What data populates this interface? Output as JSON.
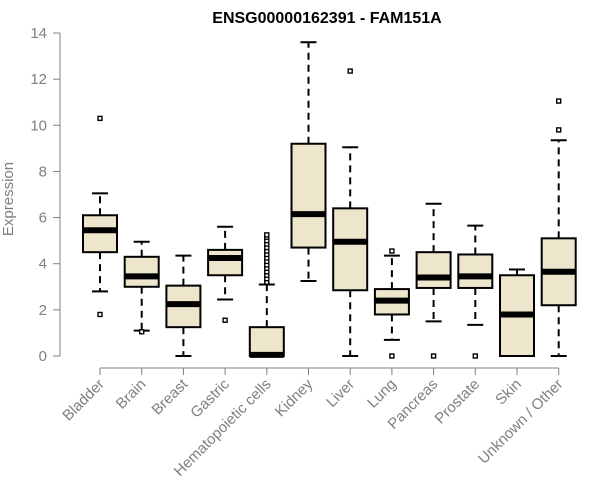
{
  "chart_data": {
    "type": "boxplot",
    "title": "ENSG00000162391 - FAM151A",
    "xlabel": "",
    "ylabel": "Expression",
    "ylim": [
      0,
      14
    ],
    "yticks": [
      0,
      2,
      4,
      6,
      8,
      10,
      12,
      14
    ],
    "colors": {
      "box_fill": "#ede6cc",
      "axis": "#808080",
      "line": "#000000"
    },
    "categories": [
      "Bladder",
      "Brain",
      "Breast",
      "Gastric",
      "Hematopoietic cells",
      "Kidney",
      "Liver",
      "Lung",
      "Pancreas",
      "Prostate",
      "Skin",
      "Unknown / Other"
    ],
    "boxes": [
      {
        "category": "Bladder",
        "whisker_low": 2.8,
        "q1": 4.5,
        "median": 5.45,
        "q3": 6.1,
        "whisker_high": 7.05,
        "outliers": [
          1.8,
          10.3
        ]
      },
      {
        "category": "Brain",
        "whisker_low": 1.1,
        "q1": 3.0,
        "median": 3.45,
        "q3": 4.3,
        "whisker_high": 4.95,
        "outliers": [
          1.05
        ]
      },
      {
        "category": "Breast",
        "whisker_low": 0.0,
        "q1": 1.25,
        "median": 2.25,
        "q3": 3.05,
        "whisker_high": 4.35,
        "outliers": []
      },
      {
        "category": "Gastric",
        "whisker_low": 2.45,
        "q1": 3.5,
        "median": 4.25,
        "q3": 4.6,
        "whisker_high": 5.6,
        "outliers": [
          1.55
        ]
      },
      {
        "category": "Hematopoietic cells",
        "whisker_low": 0.0,
        "q1": 0.0,
        "median": 0.05,
        "q3": 1.25,
        "whisker_high": 3.1,
        "outliers": [
          3.2,
          3.35,
          3.5,
          3.65,
          3.8,
          3.95,
          4.1,
          4.25,
          4.4,
          4.55,
          4.7,
          4.85,
          5.0,
          5.15,
          5.25
        ]
      },
      {
        "category": "Kidney",
        "whisker_low": 3.25,
        "q1": 4.7,
        "median": 6.15,
        "q3": 9.2,
        "whisker_high": 13.6,
        "outliers": []
      },
      {
        "category": "Liver",
        "whisker_low": 0.0,
        "q1": 2.85,
        "median": 4.95,
        "q3": 6.4,
        "whisker_high": 9.05,
        "outliers": [
          12.35
        ]
      },
      {
        "category": "Lung",
        "whisker_low": 0.7,
        "q1": 1.8,
        "median": 2.4,
        "q3": 2.9,
        "whisker_high": 4.35,
        "outliers": [
          0.0,
          4.55
        ]
      },
      {
        "category": "Pancreas",
        "whisker_low": 1.5,
        "q1": 2.95,
        "median": 3.4,
        "q3": 4.5,
        "whisker_high": 6.6,
        "outliers": [
          0.0
        ]
      },
      {
        "category": "Prostate",
        "whisker_low": 1.35,
        "q1": 2.95,
        "median": 3.45,
        "q3": 4.4,
        "whisker_high": 5.65,
        "outliers": [
          0.0
        ]
      },
      {
        "category": "Skin",
        "whisker_low": 0.0,
        "q1": 0.0,
        "median": 1.8,
        "q3": 3.5,
        "whisker_high": 3.75,
        "outliers": []
      },
      {
        "category": "Unknown / Other",
        "whisker_low": 0.0,
        "q1": 2.2,
        "median": 3.65,
        "q3": 5.1,
        "whisker_high": 9.35,
        "outliers": [
          9.8,
          11.05
        ]
      }
    ]
  }
}
